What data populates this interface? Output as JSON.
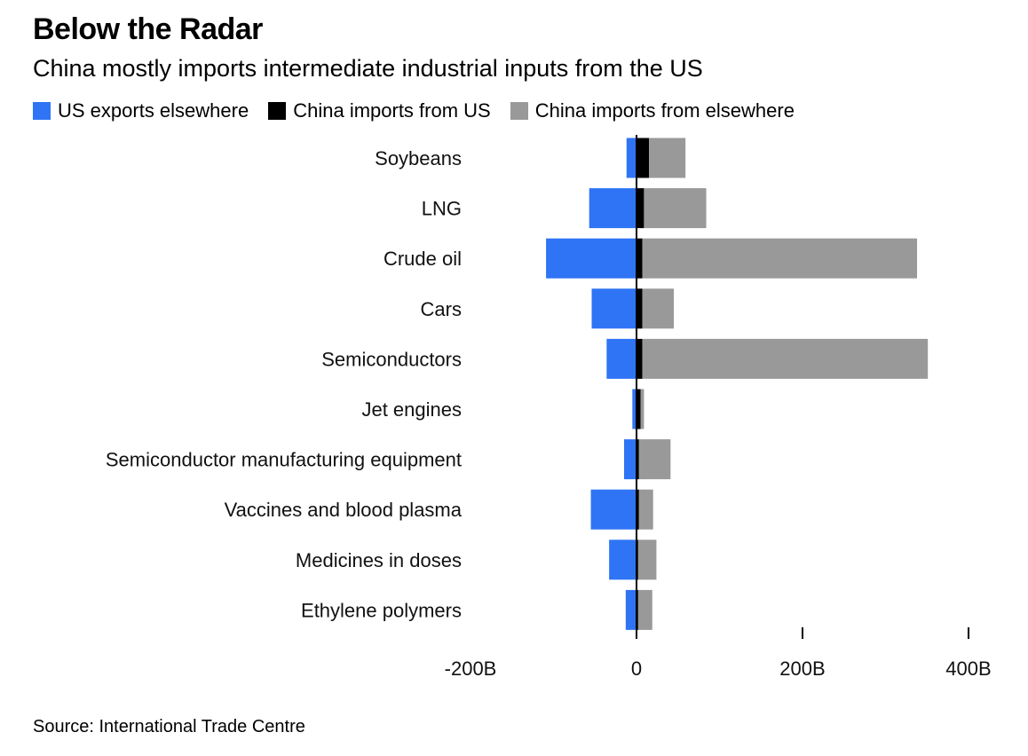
{
  "title": "Below the Radar",
  "subtitle": "China mostly imports intermediate industrial inputs from the US",
  "source": "Source: International Trade Centre",
  "colors": {
    "us_exports_elsewhere": "#2f74f5",
    "china_imports_from_us": "#000000",
    "china_imports_from_elsewhere": "#999999"
  },
  "chart_data": {
    "type": "bar",
    "orientation": "horizontal",
    "stacked": "diverging",
    "categories": [
      "Soybeans",
      "LNG",
      "Crude oil",
      "Cars",
      "Semiconductors",
      "Jet engines",
      "Semiconductor manufacturing equipment",
      "Vaccines and blood plasma",
      "Medicines in doses",
      "Ethylene polymers"
    ],
    "series": [
      {
        "name": "US exports elsewhere",
        "color": "#2f74f5",
        "values": [
          -12,
          -57,
          -109,
          -54,
          -36,
          -5,
          -15,
          -55,
          -33,
          -13
        ]
      },
      {
        "name": "China imports from US",
        "color": "#000000",
        "values": [
          15,
          9,
          7,
          7,
          7,
          5,
          3,
          3,
          2,
          2
        ]
      },
      {
        "name": "China imports from elsewhere",
        "color": "#999999",
        "values": [
          44,
          75,
          331,
          38,
          344,
          4,
          38,
          17,
          22,
          17
        ]
      }
    ],
    "x_ticks": [
      -200,
      0,
      200,
      400
    ],
    "x_tick_labels": [
      "-200B",
      "0",
      "200B",
      "400B"
    ],
    "xlim": [
      -225,
      420
    ],
    "unit": "B",
    "legend_position": "top-left"
  }
}
